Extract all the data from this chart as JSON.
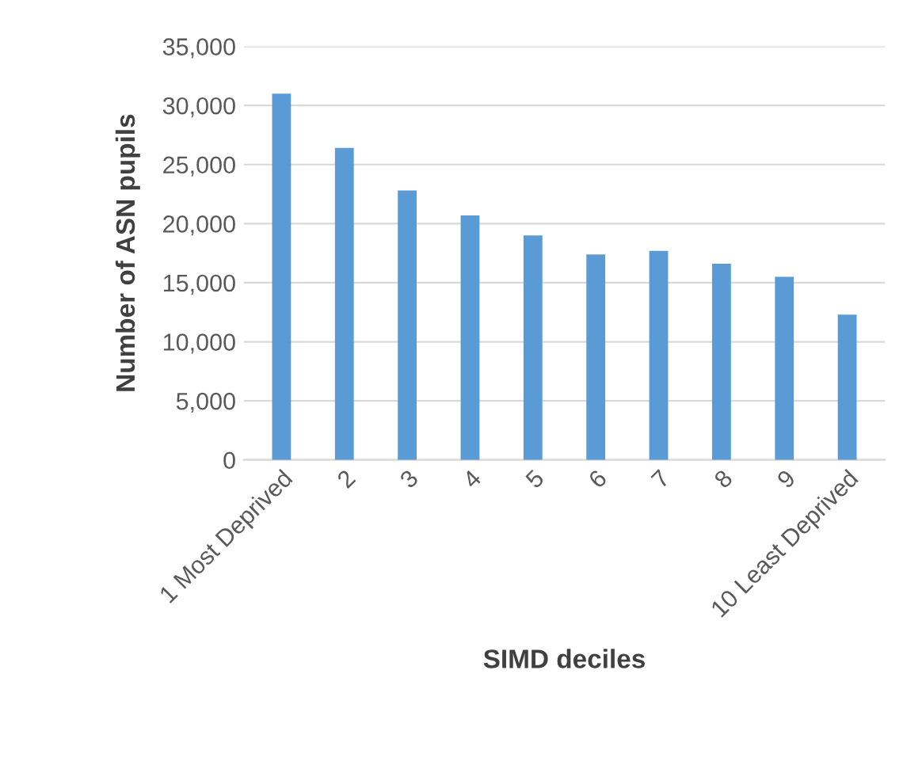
{
  "chart_data": {
    "type": "bar",
    "xlabel": "SIMD deciles",
    "ylabel": "Number of ASN pupils",
    "categories": [
      "1 Most Deprived",
      "2",
      "3",
      "4",
      "5",
      "6",
      "7",
      "8",
      "9",
      "10 Least Deprived"
    ],
    "values": [
      31000,
      26400,
      22800,
      20700,
      19000,
      17400,
      17700,
      16600,
      15500,
      12300
    ],
    "color": "#5b9bd5",
    "ylim": [
      0,
      35000
    ],
    "yticks": [
      {
        "value": 0,
        "label": "0"
      },
      {
        "value": 5000,
        "label": "5,000"
      },
      {
        "value": 10000,
        "label": "10,000"
      },
      {
        "value": 15000,
        "label": "15,000"
      },
      {
        "value": 20000,
        "label": "20,000"
      },
      {
        "value": 25000,
        "label": "25,000"
      },
      {
        "value": 30000,
        "label": "30,000"
      },
      {
        "value": 35000,
        "label": "35,000"
      }
    ],
    "grid": "y",
    "legend": false
  }
}
